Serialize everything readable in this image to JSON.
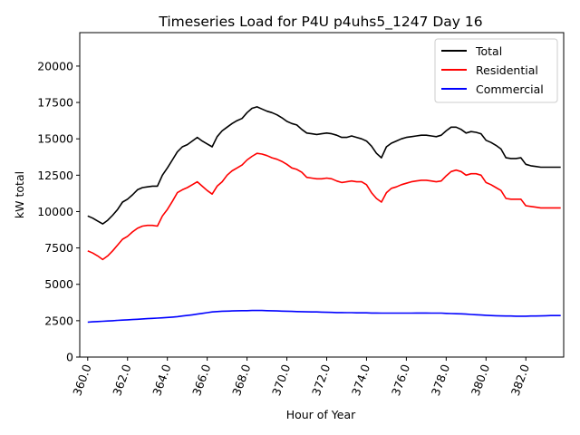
{
  "chart_data": {
    "type": "line",
    "title": "Timeseries Load for P4U p4uhs5_1247  Day 16",
    "xlabel": "Hour of Year",
    "ylabel": "kW total",
    "xlim": [
      359.6,
      383.9
    ],
    "ylim": [
      0,
      22300
    ],
    "xticks": [
      360,
      362,
      364,
      366,
      368,
      370,
      372,
      374,
      376,
      378,
      380,
      382
    ],
    "xtick_labels": [
      "360.0",
      "362.0",
      "364.0",
      "366.0",
      "368.0",
      "370.0",
      "372.0",
      "374.0",
      "376.0",
      "378.0",
      "380.0",
      "382.0"
    ],
    "yticks": [
      0,
      2500,
      5000,
      7500,
      10000,
      12500,
      15000,
      17500,
      20000
    ],
    "ytick_labels": [
      "0",
      "2500",
      "5000",
      "7500",
      "10000",
      "12500",
      "15000",
      "17500",
      "20000"
    ],
    "legend_position": "top-right",
    "x": [
      360.0,
      360.25,
      360.5,
      360.75,
      361.0,
      361.25,
      361.5,
      361.75,
      362.0,
      362.25,
      362.5,
      362.75,
      363.0,
      363.25,
      363.5,
      363.75,
      364.0,
      364.25,
      364.5,
      364.75,
      365.0,
      365.25,
      365.5,
      365.75,
      366.0,
      366.25,
      366.5,
      366.75,
      367.0,
      367.25,
      367.5,
      367.75,
      368.0,
      368.25,
      368.5,
      368.75,
      369.0,
      369.25,
      369.5,
      369.75,
      370.0,
      370.25,
      370.5,
      370.75,
      371.0,
      371.25,
      371.5,
      371.75,
      372.0,
      372.25,
      372.5,
      372.75,
      373.0,
      373.25,
      373.5,
      373.75,
      374.0,
      374.25,
      374.5,
      374.75,
      375.0,
      375.25,
      375.5,
      375.75,
      376.0,
      376.25,
      376.5,
      376.75,
      377.0,
      377.25,
      377.5,
      377.75,
      378.0,
      378.25,
      378.5,
      378.75,
      379.0,
      379.25,
      379.5,
      379.75,
      380.0,
      380.25,
      380.5,
      380.75,
      381.0,
      381.25,
      381.5,
      381.75,
      382.0,
      382.25,
      382.5,
      382.75,
      383.0,
      383.25,
      383.5,
      383.75
    ],
    "series": [
      {
        "name": "Total",
        "color": "#000000",
        "values": [
          9700,
          9550,
          9350,
          9150,
          9400,
          9750,
          10150,
          10650,
          10850,
          11150,
          11500,
          11650,
          11700,
          11750,
          11750,
          12500,
          13000,
          13550,
          14100,
          14450,
          14600,
          14850,
          15100,
          14850,
          14650,
          14450,
          15150,
          15550,
          15800,
          16050,
          16250,
          16400,
          16800,
          17100,
          17200,
          17050,
          16900,
          16800,
          16650,
          16450,
          16200,
          16050,
          15950,
          15650,
          15400,
          15350,
          15300,
          15350,
          15400,
          15350,
          15250,
          15100,
          15100,
          15200,
          15100,
          15000,
          14850,
          14500,
          14000,
          13700,
          14450,
          14700,
          14850,
          15000,
          15100,
          15150,
          15200,
          15250,
          15250,
          15200,
          15150,
          15250,
          15550,
          15800,
          15800,
          15650,
          15400,
          15500,
          15450,
          15350,
          14900,
          14750,
          14550,
          14300,
          13700,
          13650,
          13650,
          13700,
          13250,
          13150,
          13100,
          13050,
          13050,
          13050,
          13050,
          13050
        ],
        "legend_label": "Total"
      },
      {
        "name": "Residential",
        "color": "#ff0000",
        "values": [
          7300,
          7150,
          6950,
          6700,
          6950,
          7300,
          7700,
          8100,
          8300,
          8600,
          8850,
          9000,
          9050,
          9050,
          9000,
          9700,
          10150,
          10700,
          11300,
          11500,
          11650,
          11850,
          12050,
          11750,
          11450,
          11200,
          11750,
          12050,
          12500,
          12800,
          13000,
          13200,
          13550,
          13800,
          14000,
          13950,
          13850,
          13700,
          13600,
          13450,
          13250,
          13000,
          12900,
          12700,
          12350,
          12300,
          12250,
          12250,
          12300,
          12250,
          12100,
          12000,
          12050,
          12100,
          12050,
          12050,
          11850,
          11300,
          10900,
          10650,
          11300,
          11600,
          11700,
          11850,
          11950,
          12050,
          12100,
          12150,
          12150,
          12100,
          12050,
          12100,
          12450,
          12750,
          12850,
          12750,
          12500,
          12600,
          12600,
          12500,
          12000,
          11850,
          11650,
          11450,
          10900,
          10850,
          10850,
          10850,
          10400,
          10350,
          10300,
          10250,
          10250,
          10250,
          10250,
          10250
        ],
        "legend_label": "Residential"
      },
      {
        "name": "Commercial",
        "color": "#0000ff",
        "values": [
          2400,
          2420,
          2440,
          2460,
          2480,
          2500,
          2520,
          2540,
          2560,
          2580,
          2600,
          2620,
          2640,
          2660,
          2680,
          2700,
          2720,
          2750,
          2780,
          2820,
          2860,
          2900,
          2950,
          3000,
          3050,
          3100,
          3130,
          3150,
          3160,
          3170,
          3180,
          3190,
          3190,
          3200,
          3200,
          3200,
          3190,
          3180,
          3170,
          3160,
          3150,
          3140,
          3130,
          3120,
          3110,
          3100,
          3100,
          3090,
          3080,
          3070,
          3060,
          3060,
          3050,
          3050,
          3040,
          3040,
          3040,
          3030,
          3030,
          3020,
          3020,
          3020,
          3020,
          3020,
          3020,
          3020,
          3030,
          3030,
          3030,
          3020,
          3020,
          3020,
          3000,
          2990,
          2980,
          2970,
          2950,
          2930,
          2910,
          2890,
          2870,
          2850,
          2840,
          2830,
          2820,
          2820,
          2810,
          2810,
          2810,
          2820,
          2820,
          2830,
          2840,
          2850,
          2850,
          2850
        ],
        "legend_label": "Commercial"
      }
    ]
  }
}
